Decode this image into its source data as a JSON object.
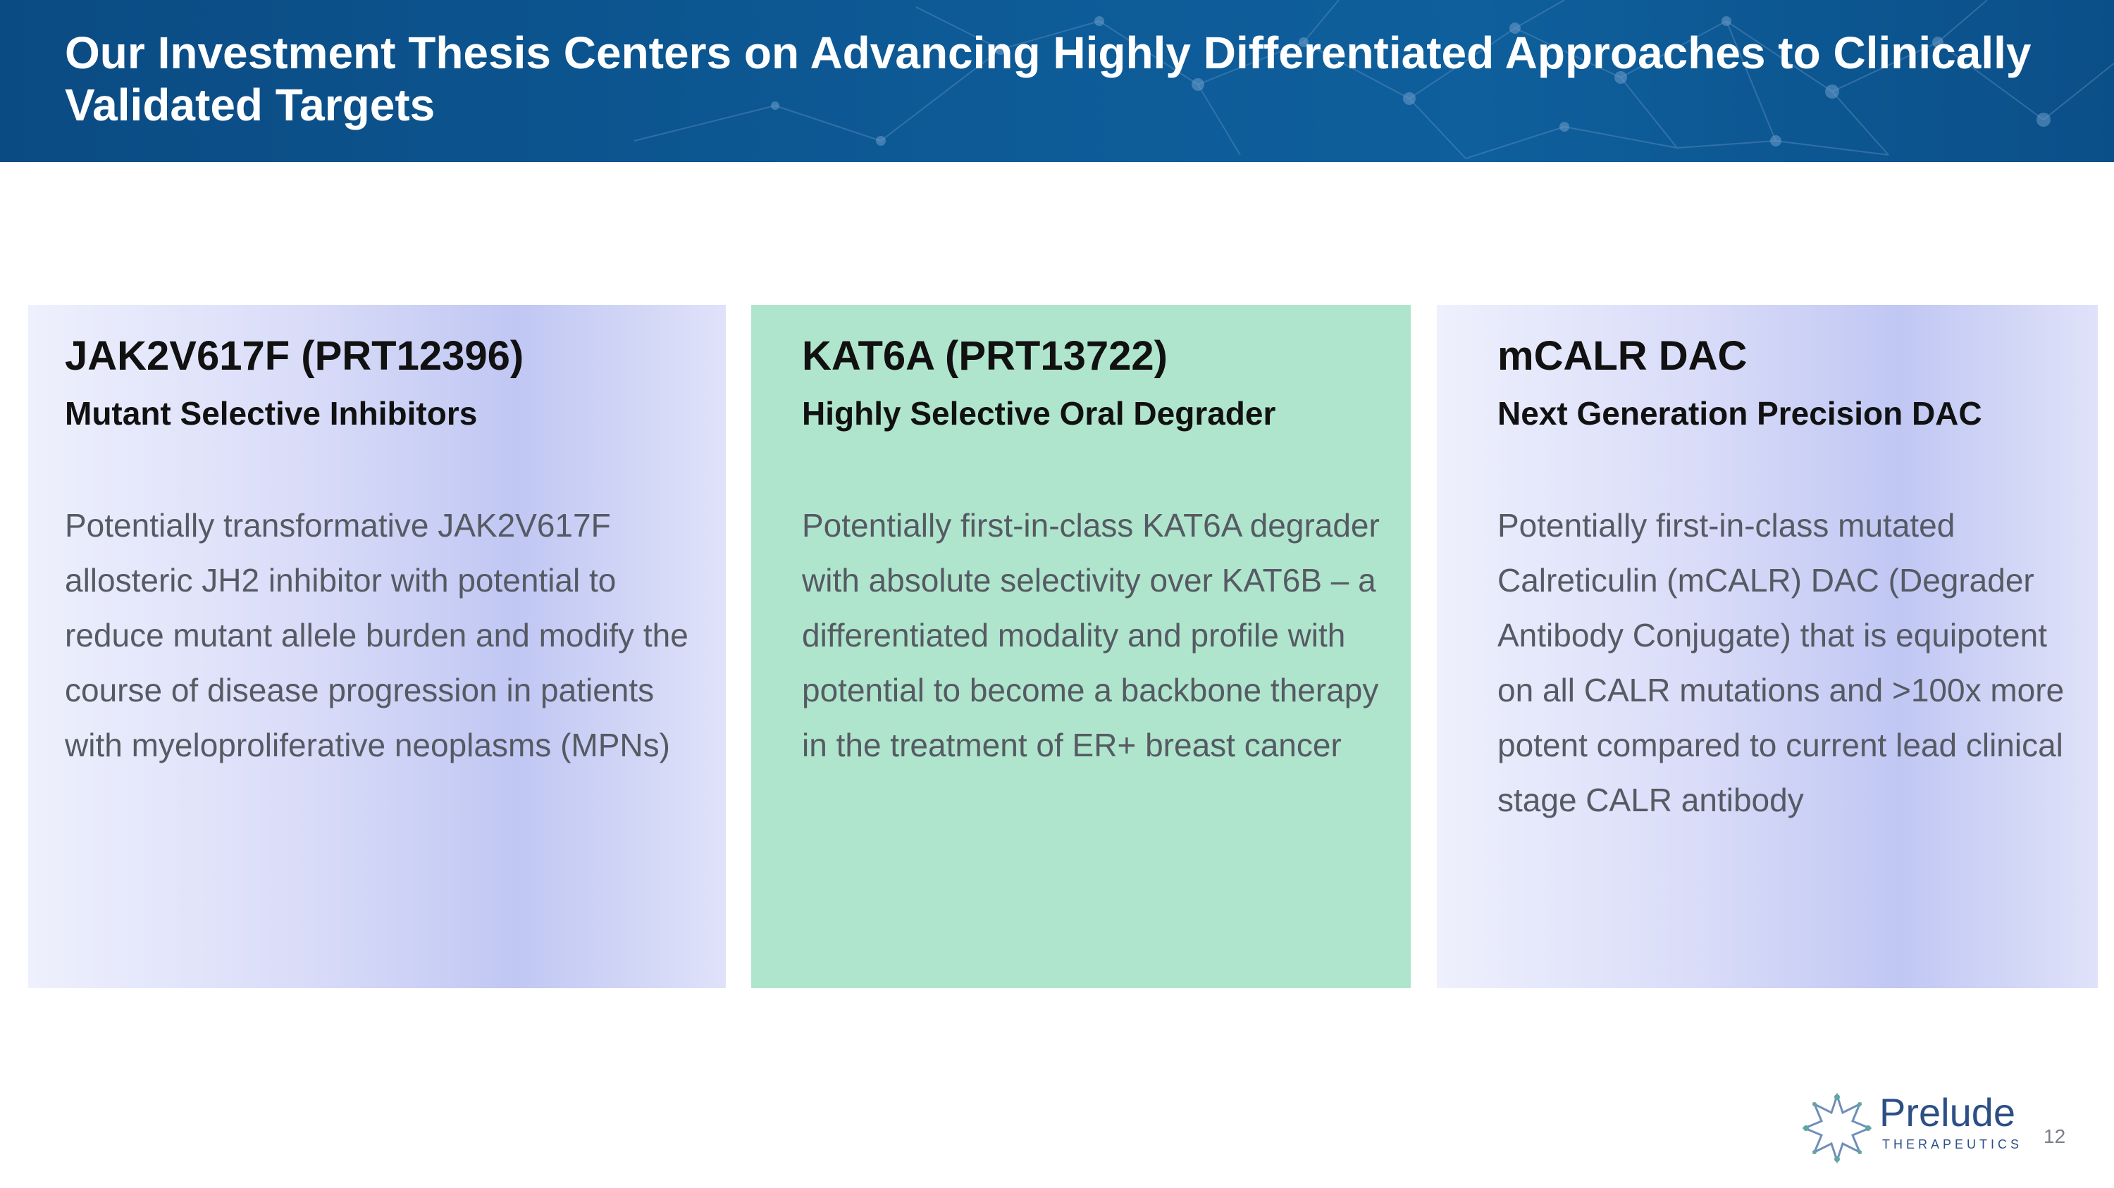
{
  "header": {
    "title": "Our Investment Thesis Centers on Advancing Highly Differentiated Approaches to Clinically Validated Targets"
  },
  "cards": [
    {
      "title": "JAK2V617F (PRT12396)",
      "subtitle": "Mutant Selective Inhibitors",
      "body": "Potentially transformative JAK2V617F allosteric JH2 inhibitor with potential to reduce mutant allele burden and modify the course of disease progression in patients with myeloproliferative neoplasms (MPNs)"
    },
    {
      "title": "KAT6A (PRT13722)",
      "subtitle": "Highly Selective Oral Degrader",
      "body": "Potentially first-in-class KAT6A degrader with absolute selectivity over KAT6B – a differentiated modality and profile with potential to become a backbone therapy in the treatment of ER+ breast cancer"
    },
    {
      "title": "mCALR DAC",
      "subtitle": "Next Generation Precision DAC",
      "body": "Potentially first-in-class mutated Calreticulin (mCALR) DAC (Degrader Antibody Conjugate) that is equipotent on all CALR mutations and >100x more potent compared to current lead clinical stage CALR antibody"
    }
  ],
  "footer": {
    "logo_name": "Prelude",
    "logo_subtitle": "THERAPEUTICS",
    "page_number": "12"
  },
  "colors": {
    "header_bg": "#0b4b83",
    "card_gradient": "#c0c7f3",
    "card_mint": "#b0e5cd",
    "body_text": "#555a63",
    "logo": "#2c4f86"
  },
  "icons": {
    "logo_mark": "prelude-starburst-icon",
    "header_decoration": "molecular-network-pattern"
  }
}
